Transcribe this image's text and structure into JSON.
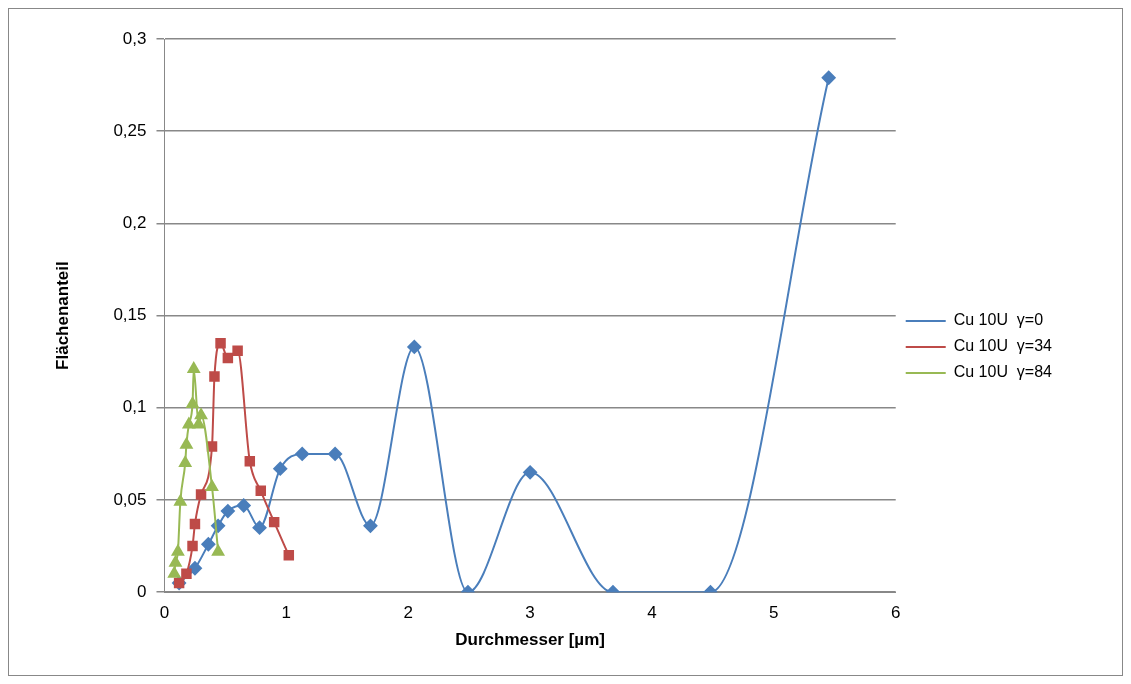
{
  "chart_data": {
    "type": "line",
    "xlabel": "Durchmesser [µm]",
    "ylabel": "Flächenanteil",
    "xlim": [
      0,
      6
    ],
    "xticks": [
      0,
      1,
      2,
      3,
      4,
      5,
      6
    ],
    "ylim": [
      0,
      0.3
    ],
    "yticks": [
      {
        "value": 0,
        "label": "0"
      },
      {
        "value": 0.05,
        "label": "0,05"
      },
      {
        "value": 0.1,
        "label": "0,1"
      },
      {
        "value": 0.15,
        "label": "0,15"
      },
      {
        "value": 0.2,
        "label": "0,2"
      },
      {
        "value": 0.25,
        "label": "0,25"
      },
      {
        "value": 0.3,
        "label": "0,3"
      }
    ],
    "grid": "y",
    "legend": "right",
    "line_style": "solid",
    "series": [
      {
        "name": "Cu 10U  γ=0",
        "marker": "diamond",
        "color": "#4a7ebb",
        "x": [
          0.12,
          0.25,
          0.36,
          0.44,
          0.52,
          0.65,
          0.78,
          0.95,
          1.13,
          1.4,
          1.69,
          2.05,
          2.49,
          3.0,
          3.68,
          4.48,
          5.45
        ],
        "values": [
          0.005,
          0.013,
          0.026,
          0.036,
          0.044,
          0.047,
          0.035,
          0.067,
          0.075,
          0.075,
          0.036,
          0.133,
          0,
          0.065,
          0,
          0,
          0.279
        ]
      },
      {
        "name": "Cu 10U  γ=34",
        "marker": "square",
        "color": "#be4b48",
        "x": [
          0.12,
          0.18,
          0.23,
          0.25,
          0.3,
          0.39,
          0.41,
          0.46,
          0.52,
          0.6,
          0.7,
          0.79,
          0.9,
          1.02
        ],
        "values": [
          0.005,
          0.01,
          0.025,
          0.037,
          0.053,
          0.079,
          0.117,
          0.135,
          0.127,
          0.131,
          0.071,
          0.055,
          0.038,
          0.02
        ]
      },
      {
        "name": "Cu 10U  γ=84",
        "marker": "triangle",
        "color": "#98b954",
        "x": [
          0.08,
          0.09,
          0.11,
          0.13,
          0.17,
          0.18,
          0.2,
          0.23,
          0.24,
          0.28,
          0.3,
          0.39,
          0.44
        ],
        "values": [
          0.01,
          0.016,
          0.022,
          0.049,
          0.07,
          0.08,
          0.091,
          0.102,
          0.121,
          0.091,
          0.096,
          0.057,
          0.022
        ]
      }
    ]
  }
}
